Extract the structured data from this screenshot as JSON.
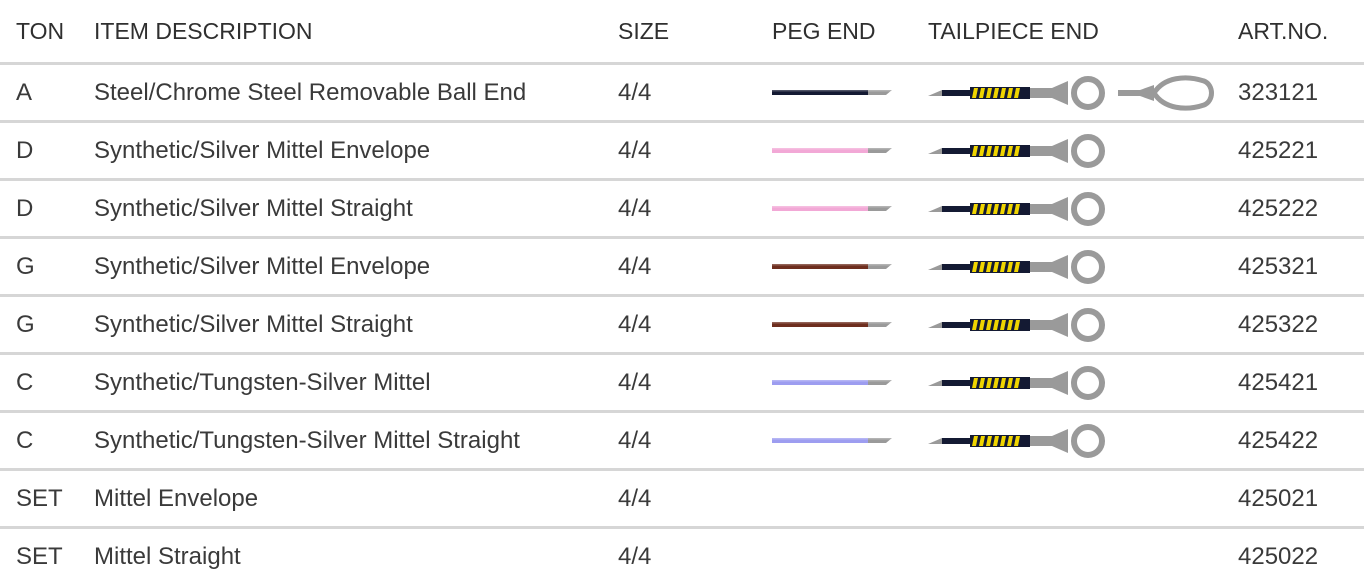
{
  "header": {
    "ton": "TON",
    "description": "ITEM DESCRIPTION",
    "size": "SIZE",
    "peg_end": "PEG END",
    "tailpiece_end": "TAILPIECE END",
    "art_no": "ART.NO."
  },
  "rows": [
    {
      "ton": "A",
      "description": "Steel/Chrome Steel Removable Ball End",
      "size": "4/4",
      "peg_color": "#141a33",
      "tailpiece": "ball-and-loop",
      "art_no": "323121"
    },
    {
      "ton": "D",
      "description": "Synthetic/Silver Mittel Envelope",
      "size": "4/4",
      "peg_color": "#f2a8d6",
      "tailpiece": "ball",
      "art_no": "425221"
    },
    {
      "ton": "D",
      "description": "Synthetic/Silver Mittel Straight",
      "size": "4/4",
      "peg_color": "#f2a8d6",
      "tailpiece": "ball",
      "art_no": "425222"
    },
    {
      "ton": "G",
      "description": "Synthetic/Silver Mittel Envelope",
      "size": "4/4",
      "peg_color": "#6e2e1e",
      "tailpiece": "ball",
      "art_no": "425321"
    },
    {
      "ton": "G",
      "description": "Synthetic/Silver Mittel Straight",
      "size": "4/4",
      "peg_color": "#6e2e1e",
      "tailpiece": "ball",
      "art_no": "425322"
    },
    {
      "ton": "C",
      "description": "Synthetic/Tungsten-Silver Mittel",
      "size": "4/4",
      "peg_color": "#9d9df0",
      "tailpiece": "ball",
      "art_no": "425421"
    },
    {
      "ton": "C",
      "description": "Synthetic/Tungsten-Silver Mittel Straight",
      "size": "4/4",
      "peg_color": "#9d9df0",
      "tailpiece": "ball",
      "art_no": "425422"
    },
    {
      "ton": "SET",
      "description": "Mittel Envelope",
      "size": "4/4",
      "peg_color": "",
      "tailpiece": "none",
      "art_no": "425021"
    },
    {
      "ton": "SET",
      "description": "Mittel Straight",
      "size": "4/4",
      "peg_color": "",
      "tailpiece": "none",
      "art_no": "425022"
    }
  ],
  "colors": {
    "text": "#3a3a3a",
    "row_divider": "#d6d6d6",
    "metal_gray": "#9a9a9a",
    "winding_black": "#141a33",
    "winding_yellow": "#f0d500"
  },
  "icons": {
    "peg_end": "string-peg-end-icon",
    "tailpiece_ball": "ball-end-icon",
    "tailpiece_loop": "loop-end-icon"
  }
}
